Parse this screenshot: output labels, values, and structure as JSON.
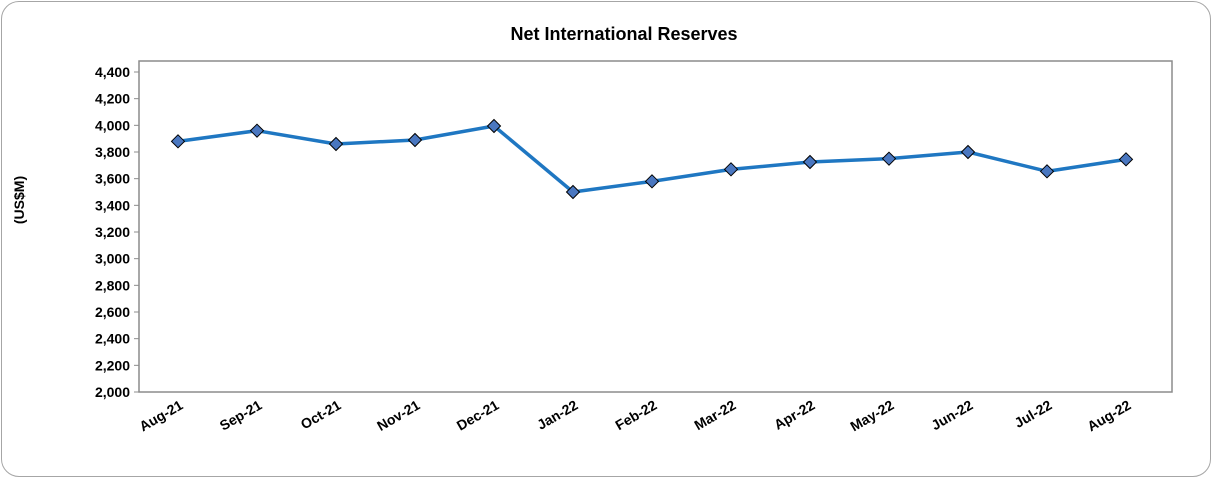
{
  "chart_data": {
    "type": "line",
    "title": "Net International Reserves",
    "ylabel": "(US$M)",
    "xlabel": "",
    "ylim": [
      2000,
      4400
    ],
    "yticks": [
      2000,
      2200,
      2400,
      2600,
      2800,
      3000,
      3200,
      3400,
      3600,
      3800,
      4000,
      4200,
      4400
    ],
    "ytick_labels": [
      "2,000",
      "2,200",
      "2,400",
      "2,600",
      "2,800",
      "3,000",
      "3,200",
      "3,400",
      "3,600",
      "3,800",
      "4,000",
      "4,200",
      "4,400"
    ],
    "categories": [
      "Aug-21",
      "Sep-21",
      "Oct-21",
      "Nov-21",
      "Dec-21",
      "Jan-22",
      "Feb-22",
      "Mar-22",
      "Apr-22",
      "May-22",
      "Jun-22",
      "Jul-22",
      "Aug-22"
    ],
    "series": [
      {
        "values": [
          3880,
          3960,
          3860,
          3890,
          3995,
          3500,
          3580,
          3670,
          3725,
          3750,
          3800,
          3655,
          3745
        ]
      }
    ],
    "grid": false,
    "legend": "none",
    "colors": {
      "line": "#1f77c2",
      "marker": "#4a77c0",
      "marker_edge": "#000000",
      "plot_border": "#8c8c8c"
    }
  }
}
